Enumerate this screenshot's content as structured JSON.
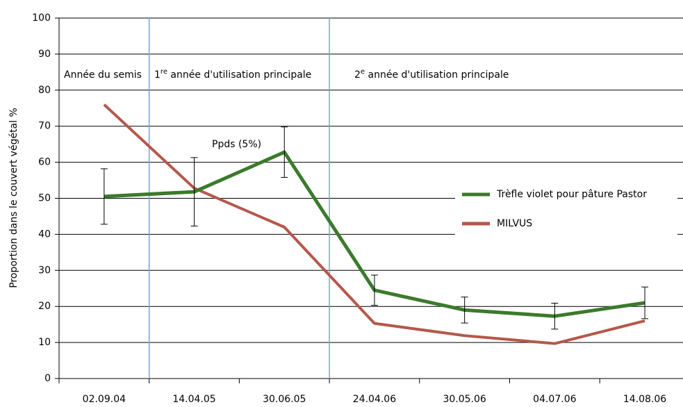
{
  "chart_data": {
    "type": "line",
    "y_label": "Proportion dans le couvert végétal %",
    "categories": [
      "02.09.04",
      "14.04.05",
      "30.06.05",
      "24.04.06",
      "30.05.06",
      "04.07.06",
      "14.08.06"
    ],
    "series": [
      {
        "name": "Trèfle violet pour pâture Pastor",
        "color": "#3b7a2c",
        "values": [
          50.5,
          51.8,
          62.8,
          24.5,
          19,
          17.3,
          21
        ],
        "errors": [
          7.7,
          9.5,
          7,
          4.2,
          3.6,
          3.6,
          4.4
        ]
      },
      {
        "name": "MILVUS",
        "color": "#b5574b",
        "values": [
          76,
          52.8,
          42,
          15.3,
          11.9,
          9.7,
          16
        ]
      }
    ],
    "annotation": "Ppds (5%)",
    "regions": [
      {
        "text": "Année du semis"
      },
      {
        "number": "1",
        "sup": "re",
        "text": " année d'utilisation principale"
      },
      {
        "number": "2",
        "sup": "e",
        "text": " année d'utilisation principale"
      }
    ],
    "ylim": [
      0,
      100
    ],
    "yticks": [
      0,
      10,
      20,
      30,
      40,
      50,
      60,
      70,
      80,
      90,
      100
    ],
    "grid": true,
    "legend": "right"
  }
}
